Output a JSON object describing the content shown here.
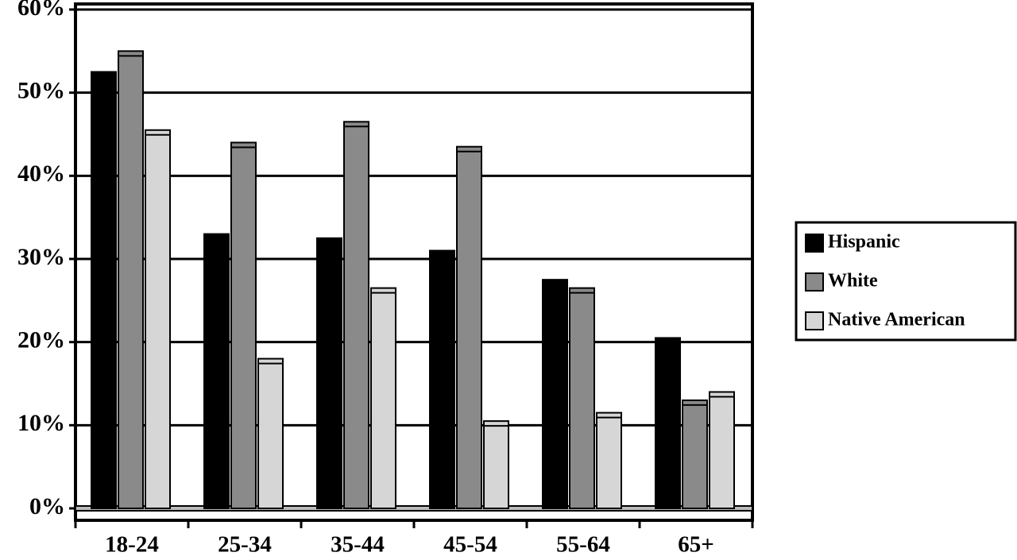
{
  "chart_data": {
    "type": "bar",
    "categories": [
      "18-24",
      "25-34",
      "35-44",
      "45-54",
      "55-64",
      "65+"
    ],
    "series": [
      {
        "name": "Hispanic",
        "color": "#000000",
        "values": [
          52.5,
          33,
          32.5,
          31,
          27.5,
          20.5
        ]
      },
      {
        "name": "White",
        "color": "#8a8a8a",
        "values": [
          55,
          44,
          46.5,
          43.5,
          26.5,
          13
        ]
      },
      {
        "name": "Native American",
        "color": "#d6d6d6",
        "values": [
          45.5,
          18,
          26.5,
          10.5,
          11.5,
          14
        ]
      }
    ],
    "ylim": [
      0,
      60
    ],
    "yticks": [
      {
        "value": 0,
        "label": "0%"
      },
      {
        "value": 10,
        "label": "10%"
      },
      {
        "value": 20,
        "label": "20%"
      },
      {
        "value": 30,
        "label": "30%"
      },
      {
        "value": 40,
        "label": "40%"
      },
      {
        "value": 50,
        "label": "50%"
      },
      {
        "value": 60,
        "label": "60%"
      }
    ],
    "grid": true,
    "legend": "right"
  }
}
